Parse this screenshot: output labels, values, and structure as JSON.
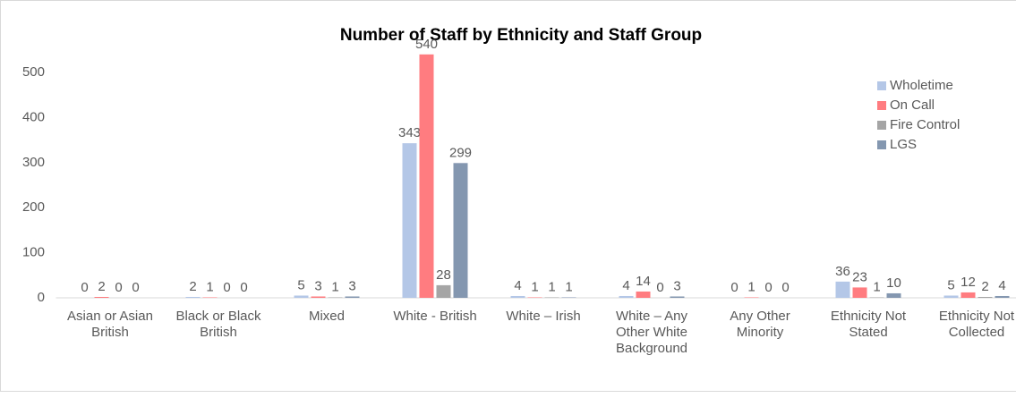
{
  "chart_data": {
    "type": "bar",
    "title": "Number of Staff by Ethnicity and Staff Group",
    "categories": [
      "Asian or Asian British",
      "Black or Black British",
      "Mixed",
      "White - British",
      "White – Irish",
      "White – Any Other White Background",
      "Any Other Minority",
      "Ethnicity Not Stated",
      "Ethnicity Not Collected"
    ],
    "series": [
      {
        "name": "Wholetime",
        "color": "#b4c7e7",
        "values": [
          0,
          2,
          5,
          343,
          4,
          4,
          0,
          36,
          5
        ]
      },
      {
        "name": "On Call",
        "color": "#ff7c80",
        "values": [
          2,
          1,
          3,
          540,
          1,
          14,
          1,
          23,
          12
        ]
      },
      {
        "name": "Fire Control",
        "color": "#a5a5a5",
        "values": [
          0,
          0,
          1,
          28,
          1,
          0,
          0,
          1,
          2
        ]
      },
      {
        "name": "LGS",
        "color": "#8497b0",
        "values": [
          0,
          0,
          3,
          299,
          1,
          3,
          0,
          10,
          4
        ]
      }
    ],
    "ylim": [
      0,
      550
    ],
    "yticks": [
      0,
      100,
      200,
      300,
      400,
      500
    ],
    "grid": false,
    "legend": "top-right"
  }
}
